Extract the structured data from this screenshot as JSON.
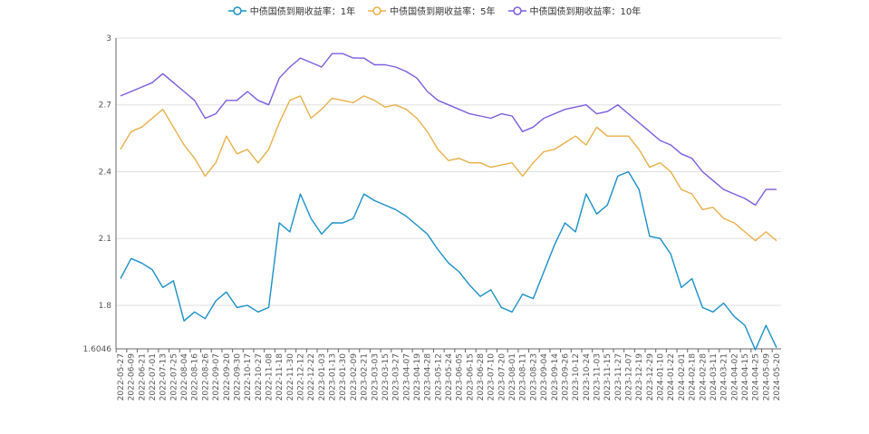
{
  "chart_data": {
    "type": "line",
    "title": "",
    "xlabel": "",
    "ylabel": "",
    "ylim": [
      1.6046,
      3
    ],
    "yticks": [
      "1.6046",
      "1.8",
      "2.1",
      "2.4",
      "2.7",
      "3"
    ],
    "grid": true,
    "legend_position": "top",
    "categories": [
      "2022-05-27",
      "2022-06-09",
      "2022-06-21",
      "2022-07-01",
      "2022-07-13",
      "2022-07-25",
      "2022-08-04",
      "2022-08-16",
      "2022-08-26",
      "2022-09-07",
      "2022-09-20",
      "2022-09-30",
      "2022-10-17",
      "2022-10-27",
      "2022-11-08",
      "2022-11-18",
      "2022-11-30",
      "2022-12-12",
      "2022-12-22",
      "2023-01-03",
      "2023-01-13",
      "2023-01-30",
      "2023-02-09",
      "2023-02-21",
      "2023-03-03",
      "2023-03-15",
      "2023-03-27",
      "2023-04-07",
      "2023-04-19",
      "2023-04-28",
      "2023-05-12",
      "2023-05-24",
      "2023-06-05",
      "2023-06-15",
      "2023-06-28",
      "2023-07-10",
      "2023-07-20",
      "2023-08-01",
      "2023-08-11",
      "2023-08-23",
      "2023-09-04",
      "2023-09-14",
      "2023-09-26",
      "2023-10-12",
      "2023-10-24",
      "2023-11-03",
      "2023-11-15",
      "2023-11-27",
      "2023-12-07",
      "2023-12-19",
      "2023-12-29",
      "2024-01-10",
      "2024-01-22",
      "2024-02-01",
      "2024-02-18",
      "2024-02-28",
      "2024-03-11",
      "2024-03-21",
      "2024-04-02",
      "2024-04-15",
      "2024-04-25",
      "2024-05-09",
      "2024-05-20"
    ],
    "series": [
      {
        "name": "中债国债到期收益率：1年",
        "color": "#1a8fc7",
        "values": [
          1.92,
          2.01,
          1.99,
          1.96,
          1.88,
          1.91,
          1.73,
          1.77,
          1.74,
          1.82,
          1.86,
          1.79,
          1.8,
          1.77,
          1.79,
          2.17,
          2.13,
          2.3,
          2.19,
          2.12,
          2.17,
          2.17,
          2.19,
          2.3,
          2.27,
          2.25,
          2.23,
          2.2,
          2.16,
          2.12,
          2.05,
          1.99,
          1.95,
          1.89,
          1.84,
          1.87,
          1.79,
          1.77,
          1.85,
          1.83,
          1.95,
          2.07,
          2.17,
          2.13,
          2.3,
          2.21,
          2.25,
          2.38,
          2.4,
          2.32,
          2.11,
          2.1,
          2.03,
          1.88,
          1.92,
          1.79,
          1.77,
          1.81,
          1.75,
          1.71,
          1.6,
          1.71,
          1.61
        ]
      },
      {
        "name": "中债国债到期收益率：5年",
        "color": "#e8b04a",
        "values": [
          2.5,
          2.58,
          2.6,
          2.64,
          2.68,
          2.6,
          2.52,
          2.46,
          2.38,
          2.44,
          2.56,
          2.48,
          2.5,
          2.44,
          2.5,
          2.62,
          2.72,
          2.74,
          2.64,
          2.68,
          2.73,
          2.72,
          2.71,
          2.74,
          2.72,
          2.69,
          2.7,
          2.68,
          2.64,
          2.58,
          2.5,
          2.45,
          2.46,
          2.44,
          2.44,
          2.42,
          2.43,
          2.44,
          2.38,
          2.44,
          2.49,
          2.5,
          2.53,
          2.56,
          2.52,
          2.6,
          2.56,
          2.56,
          2.56,
          2.5,
          2.42,
          2.44,
          2.4,
          2.32,
          2.3,
          2.23,
          2.24,
          2.19,
          2.17,
          2.13,
          2.09,
          2.13,
          2.09
        ]
      },
      {
        "name": "中债国债到期收益率：10年",
        "color": "#7b5ce0",
        "values": [
          2.74,
          2.76,
          2.78,
          2.8,
          2.84,
          2.8,
          2.76,
          2.72,
          2.64,
          2.66,
          2.72,
          2.72,
          2.76,
          2.72,
          2.7,
          2.82,
          2.87,
          2.91,
          2.89,
          2.87,
          2.93,
          2.93,
          2.91,
          2.91,
          2.88,
          2.88,
          2.87,
          2.85,
          2.82,
          2.76,
          2.72,
          2.7,
          2.68,
          2.66,
          2.65,
          2.64,
          2.66,
          2.65,
          2.58,
          2.6,
          2.64,
          2.66,
          2.68,
          2.69,
          2.7,
          2.66,
          2.67,
          2.7,
          2.66,
          2.62,
          2.58,
          2.54,
          2.52,
          2.48,
          2.46,
          2.4,
          2.36,
          2.32,
          2.3,
          2.28,
          2.25,
          2.32,
          2.32
        ]
      }
    ]
  }
}
